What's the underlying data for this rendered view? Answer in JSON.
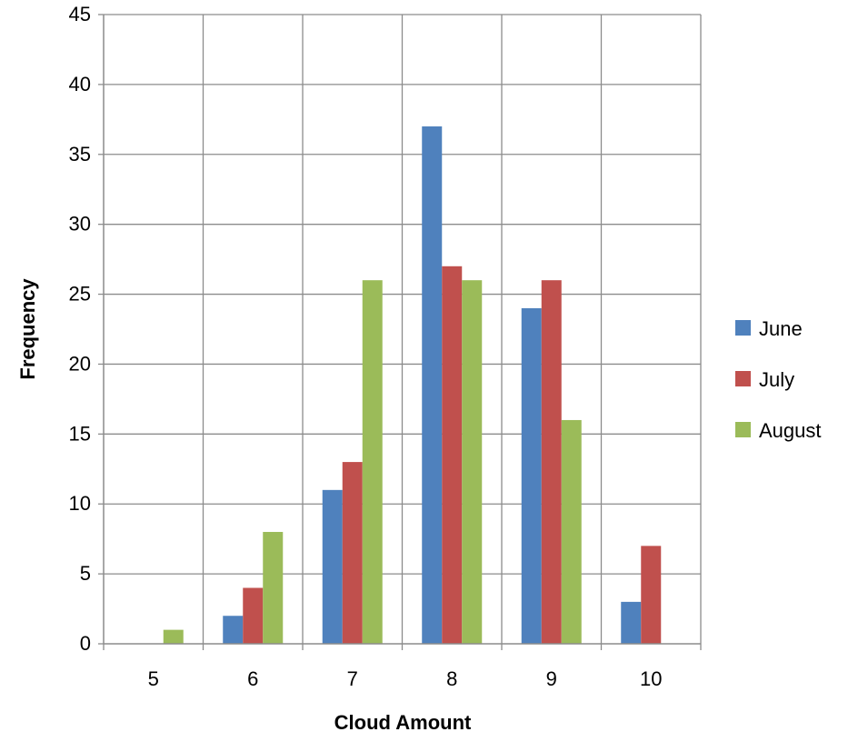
{
  "chart_data": {
    "type": "bar",
    "categories": [
      "5",
      "6",
      "7",
      "8",
      "9",
      "10"
    ],
    "series": [
      {
        "name": "June",
        "values": [
          0,
          2,
          11,
          37,
          24,
          3
        ],
        "color": "#4f81bd"
      },
      {
        "name": "July",
        "values": [
          0,
          4,
          13,
          27,
          26,
          7
        ],
        "color": "#c0504d"
      },
      {
        "name": "August",
        "values": [
          1,
          8,
          26,
          26,
          16,
          0
        ],
        "color": "#9bbb59"
      }
    ],
    "title": "",
    "xlabel": "Cloud Amount",
    "ylabel": "Frequency",
    "ylim": [
      0,
      45
    ],
    "yticks": [
      0,
      5,
      10,
      15,
      20,
      25,
      30,
      35,
      40,
      45
    ],
    "grid": true,
    "legend_position": "right"
  }
}
